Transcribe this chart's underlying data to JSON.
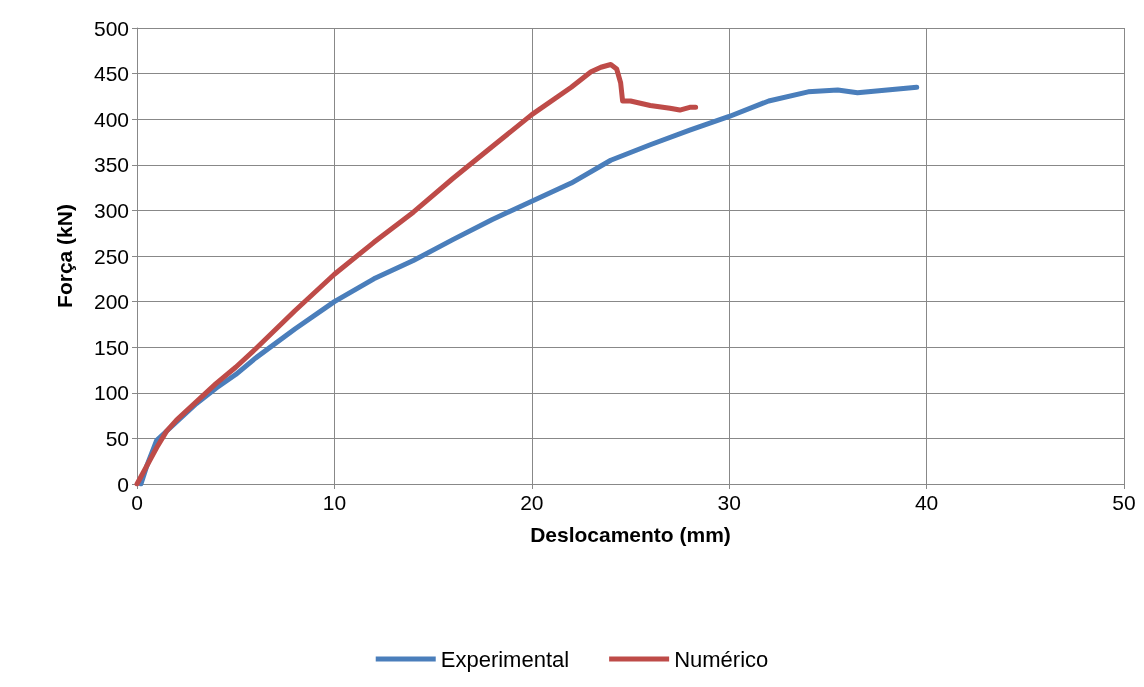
{
  "chart_data": {
    "type": "line",
    "xlabel": "Deslocamento (mm)",
    "ylabel": "Força (kN)",
    "series": [
      {
        "name": "Experimental",
        "color": "#4a7ebb",
        "x": [
          0.2,
          0.5,
          1,
          2,
          3,
          4,
          5,
          6,
          8,
          10,
          12,
          14,
          16,
          18,
          20,
          22,
          24,
          26,
          28,
          30,
          32,
          34,
          35.5,
          36.5,
          38,
          39.5
        ],
        "values": [
          0,
          20,
          48,
          68,
          88,
          105,
          120,
          138,
          170,
          200,
          225,
          245,
          268,
          290,
          310,
          330,
          355,
          372,
          388,
          403,
          420,
          430,
          432,
          429,
          432,
          435
        ]
      },
      {
        "name": "Numérico",
        "color": "#be4b48",
        "x": [
          0,
          0.5,
          1,
          1.5,
          2,
          3,
          4,
          5,
          6,
          8,
          10,
          12,
          14,
          16,
          18,
          20,
          22,
          23,
          23.5,
          24,
          24.3,
          24.5,
          24.6,
          25,
          26,
          27,
          27.5,
          28,
          28.3
        ],
        "values": [
          0,
          20,
          40,
          58,
          70,
          90,
          110,
          128,
          148,
          190,
          230,
          265,
          298,
          335,
          370,
          405,
          435,
          452,
          457,
          460,
          455,
          440,
          420,
          420,
          415,
          412,
          410,
          413,
          413
        ]
      }
    ],
    "xlim": [
      0,
      50
    ],
    "xticks": [
      0,
      10,
      20,
      30,
      40,
      50
    ],
    "ylim": [
      0,
      500
    ],
    "yticks": [
      0,
      50,
      100,
      150,
      200,
      250,
      300,
      350,
      400,
      450,
      500
    ],
    "grid": true,
    "legend": "bottom",
    "marker": "none",
    "line_style": "solid"
  }
}
